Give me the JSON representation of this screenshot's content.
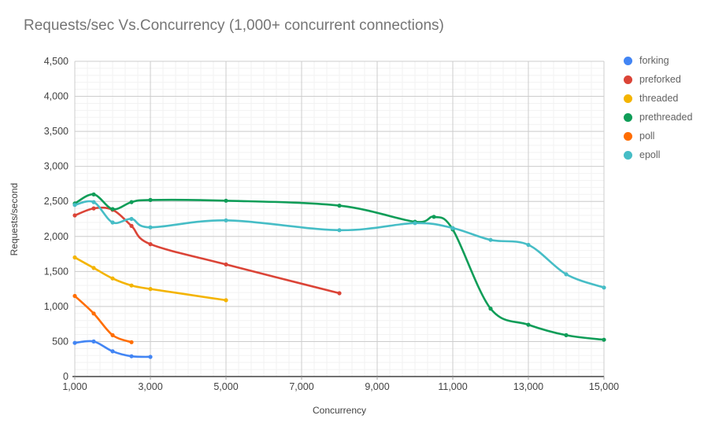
{
  "page": {
    "background": "#ffffff"
  },
  "chart_data": {
    "type": "line",
    "title": "Requests/sec Vs.Concurrency (1,000+ concurrent connections)",
    "xlabel": "Concurrency",
    "ylabel": "Requests/second",
    "xlim": [
      1000,
      15000
    ],
    "ylim": [
      0,
      4500
    ],
    "grid": {
      "x_minor_step": 333.3333,
      "y_minor_step": 100,
      "minor_color": "#f2f2f2",
      "major_color": "#cccccc",
      "baseline_color": "#424242",
      "tick_color": "#9e9e9e"
    },
    "legend_position": "right",
    "x_ticks": [
      {
        "v": 1000,
        "label": "1,000"
      },
      {
        "v": 3000,
        "label": "3,000"
      },
      {
        "v": 5000,
        "label": "5,000"
      },
      {
        "v": 7000,
        "label": "7,000"
      },
      {
        "v": 9000,
        "label": "9,000"
      },
      {
        "v": 11000,
        "label": "11,000"
      },
      {
        "v": 13000,
        "label": "13,000"
      },
      {
        "v": 15000,
        "label": "15,000"
      }
    ],
    "y_ticks": [
      {
        "v": 0,
        "label": "0"
      },
      {
        "v": 500,
        "label": "500"
      },
      {
        "v": 1000,
        "label": "1,000"
      },
      {
        "v": 1500,
        "label": "1,500"
      },
      {
        "v": 2000,
        "label": "2,000"
      },
      {
        "v": 2500,
        "label": "2,500"
      },
      {
        "v": 3000,
        "label": "3,000"
      },
      {
        "v": 3500,
        "label": "3,500"
      },
      {
        "v": 4000,
        "label": "4,000"
      },
      {
        "v": 4500,
        "label": "4,500"
      }
    ],
    "series": [
      {
        "name": "forking",
        "color": "#4285F4",
        "points": [
          [
            1000,
            480
          ],
          [
            1500,
            500
          ],
          [
            2000,
            360
          ],
          [
            2500,
            290
          ],
          [
            3000,
            280
          ]
        ]
      },
      {
        "name": "preforked",
        "color": "#DB4437",
        "points": [
          [
            1000,
            2300
          ],
          [
            1500,
            2400
          ],
          [
            2000,
            2380
          ],
          [
            2500,
            2150
          ],
          [
            3000,
            1890
          ],
          [
            5000,
            1600
          ],
          [
            8000,
            1190
          ]
        ]
      },
      {
        "name": "threaded",
        "color": "#F4B400",
        "points": [
          [
            1000,
            1700
          ],
          [
            1500,
            1550
          ],
          [
            2000,
            1400
          ],
          [
            2500,
            1300
          ],
          [
            3000,
            1250
          ],
          [
            5000,
            1090
          ]
        ]
      },
      {
        "name": "prethreaded",
        "color": "#0F9D58",
        "points": [
          [
            1000,
            2470
          ],
          [
            1500,
            2600
          ],
          [
            2000,
            2390
          ],
          [
            2500,
            2490
          ],
          [
            3000,
            2520
          ],
          [
            5000,
            2510
          ],
          [
            8000,
            2440
          ],
          [
            10000,
            2210
          ],
          [
            10500,
            2280
          ],
          [
            11000,
            2100
          ],
          [
            12000,
            970
          ],
          [
            13000,
            740
          ],
          [
            14000,
            590
          ],
          [
            15000,
            525
          ]
        ]
      },
      {
        "name": "poll",
        "color": "#FF6D01",
        "points": [
          [
            1000,
            1150
          ],
          [
            1500,
            900
          ],
          [
            2000,
            590
          ],
          [
            2500,
            490
          ]
        ]
      },
      {
        "name": "epoll",
        "color": "#46BDC6",
        "points": [
          [
            1000,
            2450
          ],
          [
            1500,
            2490
          ],
          [
            2000,
            2200
          ],
          [
            2500,
            2250
          ],
          [
            3000,
            2130
          ],
          [
            5000,
            2230
          ],
          [
            8000,
            2090
          ],
          [
            10000,
            2190
          ],
          [
            11000,
            2120
          ],
          [
            12000,
            1950
          ],
          [
            13000,
            1880
          ],
          [
            14000,
            1460
          ],
          [
            15000,
            1270
          ]
        ]
      }
    ]
  }
}
